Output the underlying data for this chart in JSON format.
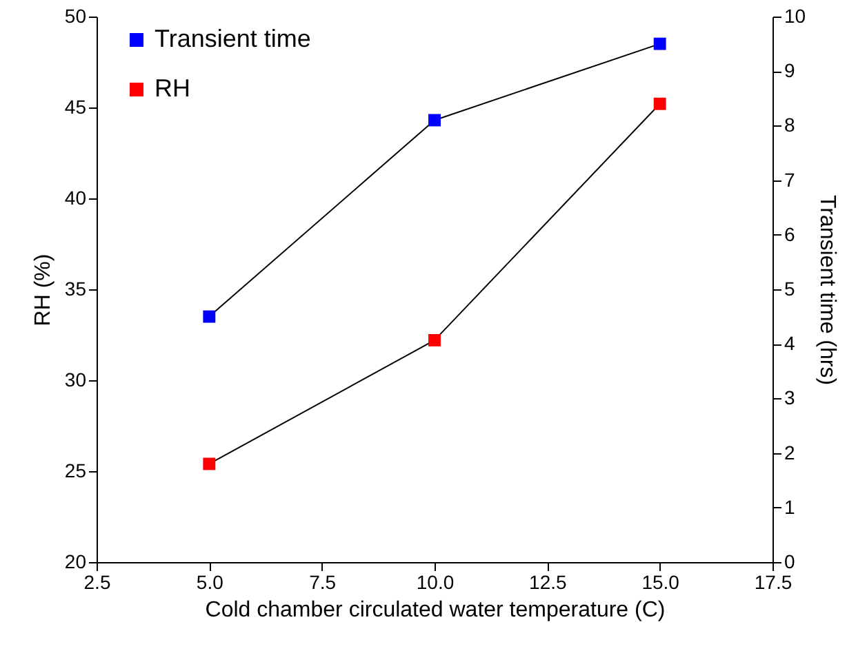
{
  "chart_data": {
    "type": "line",
    "xlabel": "Cold chamber circulated water temperature (C)",
    "ylabel": "RH (%)",
    "y2label": "Transient time (hrs)",
    "x": [
      5,
      10,
      15
    ],
    "series": [
      {
        "name": "Transient time",
        "color": "#0000ff",
        "axis": "y2",
        "values": [
          4.5,
          8.1,
          9.5
        ]
      },
      {
        "name": "RH",
        "color": "#ff0000",
        "values": [
          25.4,
          32.2,
          45.2
        ]
      }
    ],
    "xlim": [
      2.5,
      17.5
    ],
    "xticks": [
      {
        "value": 2.5,
        "label": "2.5"
      },
      {
        "value": 5,
        "label": "5.0"
      },
      {
        "value": 7.5,
        "label": "7.5"
      },
      {
        "value": 10,
        "label": "10.0"
      },
      {
        "value": 12.5,
        "label": "12.5"
      },
      {
        "value": 15,
        "label": "15.0"
      },
      {
        "value": 17.5,
        "label": "17.5"
      }
    ],
    "ylim": [
      20,
      50
    ],
    "yticks": [
      20,
      25,
      30,
      35,
      40,
      45,
      50
    ],
    "y2lim": [
      0,
      10
    ],
    "y2ticks": [
      0,
      1,
      2,
      3,
      4,
      5,
      6,
      7,
      8,
      9,
      10
    ],
    "grid": false,
    "legend": "top left",
    "marker": "square",
    "line_style": "solid"
  }
}
